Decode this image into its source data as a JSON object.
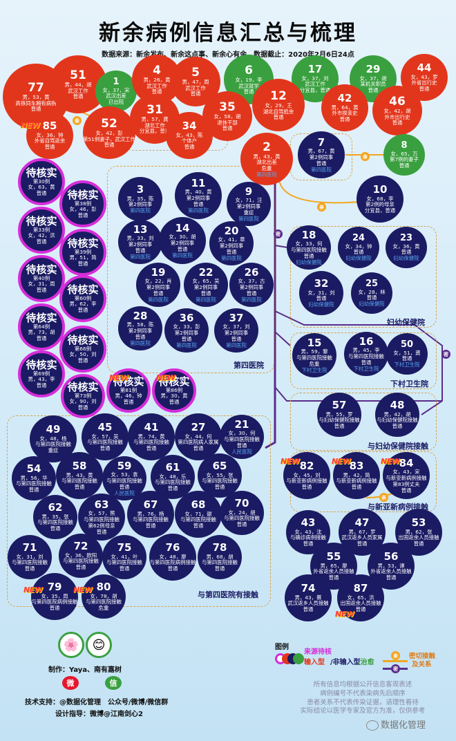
{
  "title": "新余病例信息汇总与梳理",
  "source": "数据来源：新余发布、新余这点事、新余心有余，数据截止：2020年2月6日24点",
  "new_label": "NEW",
  "relation_label": "亲",
  "close_label": "密",
  "pending_title": "待核实",
  "cases": [
    {
      "id": "77",
      "color": "red",
      "lines": [
        "男，53，黄",
        "高铁同车厢有病例",
        "普通"
      ]
    },
    {
      "id": "51",
      "color": "red",
      "lines": [
        "男，44，胡",
        "武汉工作",
        "普通"
      ]
    },
    {
      "id": "1",
      "color": "green",
      "lines": [
        "女，37，宋",
        "武汉出差",
        "已出院"
      ]
    },
    {
      "id": "4",
      "color": "red",
      "lines": [
        "男，26，黄",
        "武汉工作",
        "普通"
      ]
    },
    {
      "id": "5",
      "color": "red",
      "lines": [
        "男，47，周",
        "武汉工作",
        "普通"
      ]
    },
    {
      "id": "6",
      "color": "green",
      "lines": [
        "女，19，李",
        "武汉就学",
        "普通"
      ]
    },
    {
      "id": "17",
      "color": "green",
      "lines": [
        "女，37，刘",
        "武汉工作",
        "分宜县，普通"
      ]
    },
    {
      "id": "29",
      "color": "green",
      "lines": [
        "女，37，胡",
        "某机关职员",
        "普通"
      ]
    },
    {
      "id": "44",
      "color": "red",
      "lines": [
        "女，43，罗",
        "外省出行史",
        "普通"
      ]
    },
    {
      "id": "85",
      "color": "red",
      "lines": [
        "女，36，钟",
        "外省自驾返余",
        "普通"
      ]
    },
    {
      "id": "52",
      "color": "red",
      "lines": [
        "女，42，彭",
        "第51例妻子，武汉工作",
        "普通"
      ]
    },
    {
      "id": "31",
      "color": "red",
      "lines": [
        "男，57，龚",
        "湖北工作",
        "分宜县，普通"
      ]
    },
    {
      "id": "34",
      "color": "red",
      "lines": [
        "女，43，陈",
        "个体户",
        "普通"
      ]
    },
    {
      "id": "35",
      "color": "red",
      "lines": [
        "女，58，胡",
        "退休干部",
        "普通"
      ]
    },
    {
      "id": "12",
      "color": "red",
      "lines": [
        "女，29，王",
        "湖北自驾抵余",
        "普通"
      ]
    },
    {
      "id": "42",
      "color": "red",
      "lines": [
        "男，64，黄",
        "外市探亲史",
        "普通"
      ]
    },
    {
      "id": "46",
      "color": "red",
      "lines": [
        "女，42，胡",
        "外市出行史",
        "普通"
      ]
    },
    {
      "id": "2",
      "color": "red",
      "lines": [
        "男，43，黄",
        "湖北出差",
        "危重"
      ],
      "status": "第四医院"
    },
    {
      "id": "7",
      "color": "navy",
      "lines": [
        "男，67，黄",
        "第2例同事",
        "普通"
      ],
      "status": "第四医院"
    },
    {
      "id": "8",
      "color": "green",
      "lines": [
        "女，65，万",
        "第7例的妻子",
        "普通"
      ]
    },
    {
      "id": "10",
      "color": "navy",
      "lines": [
        "女，68，李",
        "第2例的母亲",
        "分宜县，普通"
      ]
    },
    {
      "id": "3",
      "color": "navy",
      "lines": [
        "男，35，陈",
        "第2例同事"
      ],
      "status": "第四医院"
    },
    {
      "id": "11",
      "color": "navy",
      "lines": [
        "男，40，黄",
        "第2例同事",
        "普通"
      ],
      "status": "第四医院"
    },
    {
      "id": "9",
      "color": "navy",
      "lines": [
        "女，71，汪",
        "第2例同事",
        "重症"
      ],
      "status": "第四医院"
    },
    {
      "id": "13",
      "color": "navy",
      "lines": [
        "男，33，刘",
        "第2例同事",
        "普通"
      ],
      "status": "第四医院"
    },
    {
      "id": "14",
      "color": "navy",
      "lines": [
        "女，30，胡",
        "第2例同事",
        "普通"
      ],
      "status": "第四医院"
    },
    {
      "id": "20",
      "color": "navy",
      "lines": [
        "女，41，章",
        "第2例同事",
        "普通"
      ],
      "status": "第四医院"
    },
    {
      "id": "19",
      "color": "navy",
      "lines": [
        "女，22，肖",
        "第2例同事",
        "普通"
      ],
      "status": "第四医院"
    },
    {
      "id": "22",
      "color": "navy",
      "lines": [
        "女，65，吴",
        "第2例同事",
        "普通"
      ],
      "status": "第四医院"
    },
    {
      "id": "26",
      "color": "navy",
      "lines": [
        "女，37，古",
        "第2例同事",
        "普通"
      ],
      "status": "第四医院"
    },
    {
      "id": "28",
      "color": "navy",
      "lines": [
        "男，58，陈",
        "第2例同事",
        "普通"
      ],
      "status": "第四医院"
    },
    {
      "id": "36",
      "color": "navy",
      "lines": [
        "女，33，彭",
        "第2例同事",
        "普通"
      ],
      "status": "第四医院"
    },
    {
      "id": "37",
      "color": "navy",
      "lines": [
        "女，37，刘",
        "第2例同事",
        "普通"
      ],
      "status": "第四医院"
    },
    {
      "id": "18",
      "color": "navy",
      "lines": [
        "女，33，何",
        "与第四医院接触",
        "普通"
      ],
      "status": "妇幼保健院"
    },
    {
      "id": "24",
      "color": "navy",
      "lines": [
        "女，34，钟",
        "普通"
      ],
      "status": "妇幼保健院"
    },
    {
      "id": "23",
      "color": "navy",
      "lines": [
        "女，36，黄",
        "普通"
      ],
      "status": "妇幼保健院"
    },
    {
      "id": "32",
      "color": "navy",
      "lines": [
        "女，31，刘",
        "普通"
      ],
      "status": "妇幼保健院"
    },
    {
      "id": "25",
      "color": "navy",
      "lines": [
        "女，28，林",
        "普通"
      ],
      "status": "妇幼保健院"
    },
    {
      "id": "15",
      "color": "navy",
      "lines": [
        "男，59，黎",
        "与第四医院接触",
        "危重"
      ],
      "status": "下村卫生院"
    },
    {
      "id": "16",
      "color": "navy",
      "lines": [
        "男，45，李",
        "与第四医院接触",
        "普通"
      ],
      "status": "下村卫生院"
    },
    {
      "id": "50",
      "color": "navy",
      "lines": [
        "女，51，龚",
        "普通"
      ],
      "status": "下村卫生院"
    },
    {
      "id": "57",
      "color": "navy",
      "lines": [
        "男，55，罗",
        "与妇幼保健院接触",
        "普通"
      ]
    },
    {
      "id": "48",
      "color": "navy",
      "lines": [
        "男，42，胡",
        "与妇幼保健院接触",
        "普通"
      ]
    },
    {
      "id": "49",
      "color": "navy",
      "lines": [
        "女，48，杨",
        "与第四医院接触",
        "重症"
      ]
    },
    {
      "id": "45",
      "color": "navy",
      "lines": [
        "女，57，吴",
        "与第四医院接触",
        "普通"
      ]
    },
    {
      "id": "41",
      "color": "navy",
      "lines": [
        "男，74，黄",
        "与第四医院接触",
        "普通"
      ]
    },
    {
      "id": "27",
      "color": "navy",
      "lines": [
        "女，44，何",
        "第四医院病人家属",
        "普通"
      ]
    },
    {
      "id": "21",
      "color": "navy",
      "lines": [
        "女，30，何",
        "与第四医院接触",
        "普通"
      ],
      "status": "人民医院"
    },
    {
      "id": "54",
      "color": "navy",
      "lines": [
        "男，56，华",
        "与第四医院接触",
        "普通"
      ]
    },
    {
      "id": "58",
      "color": "navy",
      "lines": [
        "男，43，黄",
        "与第四医院接触",
        "普通"
      ]
    },
    {
      "id": "59",
      "color": "navy",
      "lines": [
        "女，53，袁",
        "与第四医院接触",
        "普通"
      ],
      "status": "人民医院"
    },
    {
      "id": "61",
      "color": "navy",
      "lines": [
        "女，48，乐",
        "与第四医院接触",
        "普通"
      ]
    },
    {
      "id": "65",
      "color": "navy",
      "lines": [
        "女，55，张",
        "与第四医院接触",
        "普通"
      ]
    },
    {
      "id": "62",
      "color": "navy",
      "lines": [
        "男，35，张",
        "与第四医院接触",
        "普通"
      ]
    },
    {
      "id": "63",
      "color": "navy",
      "lines": [
        "女，57，熊",
        "与第四医院接触",
        "第62例母亲",
        "普通"
      ]
    },
    {
      "id": "67",
      "color": "navy",
      "lines": [
        "男，76，杨",
        "与第四医院接触",
        "普通"
      ]
    },
    {
      "id": "68",
      "color": "navy",
      "lines": [
        "女，71，谢",
        "与第四医院接触",
        "普通"
      ]
    },
    {
      "id": "70",
      "color": "navy",
      "lines": [
        "女，24，胡",
        "与第四医院接触",
        "普通"
      ]
    },
    {
      "id": "71",
      "color": "navy",
      "lines": [
        "女，31，刘",
        "与第四医院接触",
        "普通"
      ]
    },
    {
      "id": "72",
      "color": "navy",
      "lines": [
        "女，36，欧阳",
        "与第四医院接触",
        "普通"
      ]
    },
    {
      "id": "75",
      "color": "navy",
      "lines": [
        "女，41，叶",
        "与第四医院接触",
        "普通"
      ]
    },
    {
      "id": "76",
      "color": "navy",
      "lines": [
        "女，48，廖",
        "与第四医院病例接触",
        "普通"
      ]
    },
    {
      "id": "78",
      "color": "navy",
      "lines": [
        "男，68，胡",
        "与第四医院接触",
        "普通"
      ]
    },
    {
      "id": "79",
      "color": "navy",
      "lines": [
        "女，35，周",
        "与第四医院病例接触",
        "普通"
      ]
    },
    {
      "id": "80",
      "color": "navy",
      "lines": [
        "女，78，胡",
        "与第四医院接触",
        "危重"
      ]
    },
    {
      "id": "82",
      "color": "navy",
      "lines": [
        "女，45，刘",
        "与新亚新病例接触",
        "普通"
      ]
    },
    {
      "id": "83",
      "color": "navy",
      "lines": [
        "男，42，简",
        "与新亚新病例接触",
        "普通"
      ]
    },
    {
      "id": "84",
      "color": "navy",
      "lines": [
        "女，43，宋",
        "与新亚新病例接触",
        "第83例丈夫",
        "普通"
      ]
    },
    {
      "id": "43",
      "color": "navy",
      "lines": [
        "女，43，沈",
        "与确诊病例接触",
        "普通"
      ]
    },
    {
      "id": "47",
      "color": "navy",
      "lines": [
        "男，67，罗",
        "武汉返乡人员家属",
        "普通"
      ]
    },
    {
      "id": "53",
      "color": "navy",
      "lines": [
        "男，62，张",
        "出国返余人员接触",
        "普通"
      ]
    },
    {
      "id": "55",
      "color": "navy",
      "lines": [
        "男，65，廖",
        "外省返余人员接触",
        "普通"
      ]
    },
    {
      "id": "56",
      "color": "navy",
      "lines": [
        "男，53，谭",
        "外省返余人员接触",
        "普通"
      ]
    },
    {
      "id": "74",
      "color": "navy",
      "lines": [
        "男，43，蔡",
        "武汉返乡人员接触",
        "普通"
      ]
    },
    {
      "id": "87",
      "color": "navy",
      "lines": [
        "女，65，洪",
        "出国返余人员接触",
        "普通"
      ]
    }
  ],
  "pending": [
    {
      "lines": [
        "第30例",
        "女，63，黄",
        "普通"
      ]
    },
    {
      "lines": [
        "第38例",
        "女，46，彭",
        "普通"
      ]
    },
    {
      "lines": [
        "第33例",
        "女，42，洪",
        "普通"
      ]
    },
    {
      "lines": [
        "第39例",
        "男，51，简",
        "普通"
      ]
    },
    {
      "lines": [
        "第40例",
        "女，31，周",
        "普通"
      ]
    },
    {
      "lines": [
        "第60例",
        "男，62，李",
        "普通"
      ]
    },
    {
      "lines": [
        "第64例",
        "男，73，胡",
        "普通"
      ]
    },
    {
      "lines": [
        "第66例",
        "女，50，刘",
        "普通"
      ]
    },
    {
      "lines": [
        "第69例",
        "男，43，李",
        "普通"
      ]
    },
    {
      "lines": [
        "第73例",
        "女，90，刘",
        "普通"
      ]
    },
    {
      "lines": [
        "第81例",
        "男，46，钟",
        "普通"
      ]
    },
    {
      "lines": [
        "第86例",
        "男，30，黄",
        "普通"
      ]
    }
  ],
  "groups": {
    "fourth_hospital": "第四医院",
    "maternal": "妇幼保健院",
    "xiacun": "下村卫生院",
    "maternal_contact": "与妇幼保健院接触",
    "xinyaxin_contact": "与新亚新病例接触",
    "fourth_contact": "与第四医院有接触"
  },
  "credits": {
    "maker": "制作：Yaya、南有嘉树",
    "support": "技术支持：@数据化管理　公众号/微博/微信群",
    "design": "设计指导：微博@江南剑心2"
  },
  "legend": {
    "title": "图例",
    "pending": "来源待核",
    "types": [
      "输入型",
      "/非输入型",
      "/治愈"
    ],
    "relation": "密切接触",
    "relation2": "及关系"
  },
  "disclaimer": [
    "所有信息均根据公开信息客观表述",
    "病例编号不代表染病先后顺序",
    "患者关系不代表传染证据，请理性看待",
    "实际结论以医学专家及官方为准，仅供参考"
  ],
  "watermark": "数据化管理",
  "colors": {
    "red": "#e2361c",
    "green": "#3aa03f",
    "navy": "#1b1b63",
    "pending_ring": "#d62cd9",
    "accent": "#f3a51f"
  }
}
